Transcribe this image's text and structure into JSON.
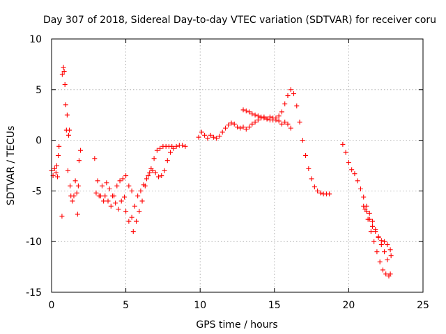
{
  "chart_data": {
    "type": "scatter",
    "title": "Day 307 of 2018, Sidereal Day-to-day VTEC variation (SDTVAR) for receiver coru",
    "xlabel": "GPS time / hours",
    "ylabel": "SDTVAR / TECUs",
    "xlim": [
      0,
      25
    ],
    "ylim": [
      -15,
      10
    ],
    "xticks": [
      0,
      5,
      10,
      15,
      20,
      25
    ],
    "yticks": [
      -15,
      -10,
      -5,
      0,
      5,
      10
    ],
    "grid": true,
    "marker": "+",
    "color": "#ff0000",
    "series": [
      {
        "name": "seg-a",
        "points": [
          [
            0.0,
            -3.0
          ],
          [
            0.1,
            -3.5
          ],
          [
            0.2,
            -2.8
          ],
          [
            0.3,
            -3.2
          ],
          [
            0.35,
            -2.5
          ],
          [
            0.4,
            -3.6
          ],
          [
            0.45,
            -1.5
          ],
          [
            0.5,
            -0.6
          ]
        ]
      },
      {
        "name": "seg-b",
        "points": [
          [
            0.7,
            -7.5
          ],
          [
            0.72,
            6.5
          ],
          [
            0.8,
            7.2
          ],
          [
            0.85,
            6.8
          ],
          [
            0.9,
            5.5
          ],
          [
            0.95,
            3.5
          ],
          [
            1.0,
            1.0
          ],
          [
            1.05,
            2.5
          ],
          [
            1.1,
            -3.0
          ],
          [
            1.15,
            0.5
          ],
          [
            1.2,
            1.0
          ],
          [
            1.25,
            -4.5
          ],
          [
            1.3,
            -5.5
          ],
          [
            1.4,
            -6.0
          ],
          [
            1.5,
            -5.5
          ],
          [
            1.6,
            -4.0
          ],
          [
            1.7,
            -5.2
          ],
          [
            1.75,
            -7.3
          ],
          [
            1.8,
            -4.5
          ],
          [
            1.85,
            -2.0
          ],
          [
            1.95,
            -1.0
          ]
        ]
      },
      {
        "name": "seg-c",
        "points": [
          [
            2.9,
            -1.8
          ],
          [
            3.1,
            -4.0
          ],
          [
            3.3,
            -5.5
          ],
          [
            3.5,
            -6.0
          ],
          [
            3.7,
            -4.2
          ],
          [
            3.9,
            -4.8
          ],
          [
            4.1,
            -5.5
          ],
          [
            4.3,
            -6.2
          ],
          [
            4.5,
            -6.8
          ],
          [
            4.7,
            -6.0
          ],
          [
            4.9,
            -5.6
          ],
          [
            5.0,
            -7.0
          ],
          [
            5.2,
            -8.0
          ],
          [
            5.4,
            -7.6
          ],
          [
            5.6,
            -6.5
          ],
          [
            5.8,
            -5.5
          ],
          [
            6.0,
            -5.0
          ],
          [
            6.2,
            -4.4
          ],
          [
            6.4,
            -3.8
          ],
          [
            6.6,
            -3.2
          ],
          [
            6.8,
            -3.0
          ],
          [
            7.0,
            -3.2
          ],
          [
            7.2,
            -3.6
          ],
          [
            7.4,
            -3.5
          ],
          [
            7.6,
            -3.0
          ],
          [
            7.8,
            -2.0
          ],
          [
            8.0,
            -1.2
          ],
          [
            8.2,
            -0.8
          ],
          [
            8.4,
            -0.6
          ],
          [
            8.6,
            -0.5
          ],
          [
            8.8,
            -0.5
          ],
          [
            9.0,
            -0.6
          ]
        ]
      },
      {
        "name": "seg-d",
        "points": [
          [
            3.0,
            -5.2
          ],
          [
            3.2,
            -5.5
          ],
          [
            3.4,
            -4.5
          ],
          [
            3.6,
            -5.5
          ],
          [
            3.8,
            -6.0
          ],
          [
            4.0,
            -6.5
          ],
          [
            4.2,
            -5.5
          ],
          [
            4.4,
            -4.5
          ],
          [
            4.6,
            -4.0
          ],
          [
            4.8,
            -3.8
          ],
          [
            5.0,
            -3.5
          ],
          [
            5.2,
            -4.5
          ],
          [
            5.4,
            -5.0
          ],
          [
            5.5,
            -9.0
          ],
          [
            5.7,
            -8.0
          ],
          [
            5.9,
            -7.0
          ],
          [
            6.1,
            -6.0
          ],
          [
            6.3,
            -4.5
          ],
          [
            6.5,
            -3.5
          ],
          [
            6.7,
            -2.8
          ],
          [
            6.9,
            -1.8
          ],
          [
            7.1,
            -1.0
          ],
          [
            7.3,
            -0.8
          ],
          [
            7.5,
            -0.6
          ],
          [
            7.7,
            -0.6
          ],
          [
            7.9,
            -0.6
          ],
          [
            8.1,
            -0.6
          ]
        ]
      },
      {
        "name": "seg-e",
        "points": [
          [
            9.9,
            0.3
          ],
          [
            10.1,
            0.8
          ],
          [
            10.3,
            0.5
          ],
          [
            10.5,
            0.2
          ],
          [
            10.7,
            0.5
          ],
          [
            10.9,
            0.3
          ],
          [
            11.1,
            0.2
          ],
          [
            11.3,
            0.4
          ],
          [
            11.5,
            0.8
          ],
          [
            11.7,
            1.2
          ],
          [
            11.9,
            1.5
          ],
          [
            12.1,
            1.7
          ],
          [
            12.3,
            1.6
          ],
          [
            12.5,
            1.3
          ],
          [
            12.7,
            1.2
          ],
          [
            12.9,
            1.3
          ],
          [
            13.1,
            1.1
          ],
          [
            13.3,
            1.3
          ],
          [
            13.5,
            1.6
          ],
          [
            13.7,
            1.8
          ],
          [
            13.9,
            2.0
          ],
          [
            14.1,
            2.2
          ],
          [
            14.3,
            2.2
          ],
          [
            14.5,
            2.1
          ],
          [
            14.7,
            2.3
          ],
          [
            14.9,
            2.0
          ],
          [
            15.1,
            2.2
          ],
          [
            15.3,
            2.4
          ],
          [
            15.5,
            2.8
          ],
          [
            15.7,
            3.6
          ],
          [
            15.9,
            4.4
          ],
          [
            16.1,
            5.0
          ],
          [
            16.3,
            4.6
          ],
          [
            16.5,
            3.4
          ],
          [
            16.7,
            1.8
          ],
          [
            16.9,
            0.0
          ],
          [
            17.1,
            -1.5
          ],
          [
            17.3,
            -2.8
          ],
          [
            17.5,
            -3.8
          ],
          [
            17.7,
            -4.6
          ],
          [
            17.9,
            -5.0
          ],
          [
            18.1,
            -5.2
          ],
          [
            18.3,
            -5.3
          ],
          [
            18.5,
            -5.3
          ],
          [
            18.7,
            -5.3
          ]
        ]
      },
      {
        "name": "seg-f",
        "points": [
          [
            12.9,
            3.0
          ],
          [
            13.1,
            2.9
          ],
          [
            13.3,
            2.8
          ],
          [
            13.5,
            2.6
          ],
          [
            13.7,
            2.5
          ],
          [
            13.9,
            2.4
          ],
          [
            14.1,
            2.3
          ],
          [
            14.3,
            2.3
          ],
          [
            14.5,
            2.1
          ],
          [
            14.7,
            2.0
          ],
          [
            14.9,
            2.2
          ],
          [
            15.1,
            2.0
          ],
          [
            15.3,
            1.9
          ],
          [
            15.5,
            1.6
          ],
          [
            15.7,
            1.8
          ],
          [
            15.9,
            1.6
          ],
          [
            16.1,
            1.2
          ]
        ]
      },
      {
        "name": "seg-g",
        "points": [
          [
            19.6,
            -0.4
          ],
          [
            19.8,
            -1.2
          ],
          [
            20.0,
            -2.2
          ],
          [
            20.2,
            -2.9
          ],
          [
            20.4,
            -3.3
          ],
          [
            20.6,
            -4.0
          ],
          [
            20.8,
            -4.8
          ],
          [
            21.0,
            -5.6
          ],
          [
            21.2,
            -6.5
          ],
          [
            21.4,
            -7.2
          ],
          [
            21.6,
            -8.0
          ],
          [
            21.8,
            -8.8
          ],
          [
            22.0,
            -9.6
          ],
          [
            22.2,
            -10.3
          ],
          [
            22.4,
            -11.0
          ],
          [
            22.6,
            -11.8
          ],
          [
            22.8,
            -13.2
          ]
        ]
      },
      {
        "name": "seg-h",
        "points": [
          [
            21.0,
            -6.5
          ],
          [
            21.2,
            -7.0
          ],
          [
            21.4,
            -7.8
          ],
          [
            21.6,
            -8.5
          ],
          [
            21.8,
            -9.0
          ],
          [
            22.0,
            -9.5
          ],
          [
            22.2,
            -9.9
          ],
          [
            22.4,
            -10.0
          ],
          [
            22.6,
            -10.3
          ],
          [
            22.8,
            -10.8
          ],
          [
            22.85,
            -11.4
          ]
        ]
      },
      {
        "name": "seg-i",
        "points": [
          [
            21.1,
            -6.8
          ],
          [
            21.3,
            -7.8
          ],
          [
            21.5,
            -9.0
          ],
          [
            21.7,
            -10.0
          ],
          [
            21.9,
            -11.0
          ],
          [
            22.1,
            -12.0
          ],
          [
            22.3,
            -12.8
          ],
          [
            22.5,
            -13.2
          ],
          [
            22.7,
            -13.4
          ]
        ]
      }
    ]
  }
}
